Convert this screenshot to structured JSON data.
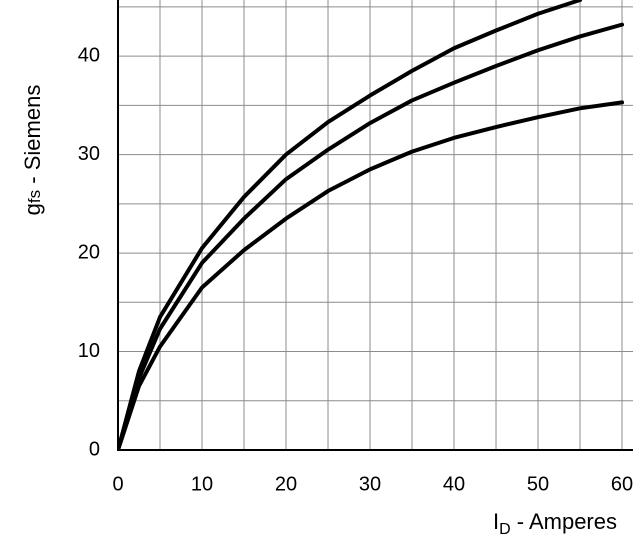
{
  "chart_data": {
    "type": "line",
    "x_label": {
      "main": "I",
      "sub": "D",
      "rest": " - Amperes"
    },
    "y_label": {
      "main": "g",
      "sub": "fs",
      "rest": " - Siemens"
    },
    "x": [
      0,
      2.5,
      5,
      10,
      15,
      20,
      25,
      30,
      35,
      40,
      45,
      50,
      55,
      60
    ],
    "series": [
      {
        "color": "#000000",
        "values": [
          0,
          8,
          13.5,
          20.5,
          25.7,
          30,
          33.3,
          36,
          38.5,
          40.8,
          42.6,
          44.3,
          45.7,
          null
        ]
      },
      {
        "color": "#000000",
        "values": [
          0,
          7.3,
          12.3,
          19,
          23.5,
          27.5,
          30.5,
          33.2,
          35.5,
          37.3,
          39,
          40.6,
          42,
          43.2
        ]
      },
      {
        "color": "#000000",
        "values": [
          0,
          6.5,
          10.5,
          16.5,
          20.3,
          23.5,
          26.3,
          28.5,
          30.3,
          31.7,
          32.8,
          33.8,
          34.7,
          35.3
        ]
      }
    ],
    "xlim": [
      0,
      61.2
    ],
    "ylim": [
      0,
      45.7
    ],
    "xticks": [
      0,
      10,
      20,
      30,
      40,
      50,
      60
    ],
    "yticks": [
      0,
      10,
      20,
      30,
      40
    ],
    "x_minor_grid": [
      5,
      15,
      25,
      35,
      45,
      55
    ],
    "y_minor_grid": [
      5,
      15,
      25,
      35,
      45
    ],
    "grid": true
  }
}
